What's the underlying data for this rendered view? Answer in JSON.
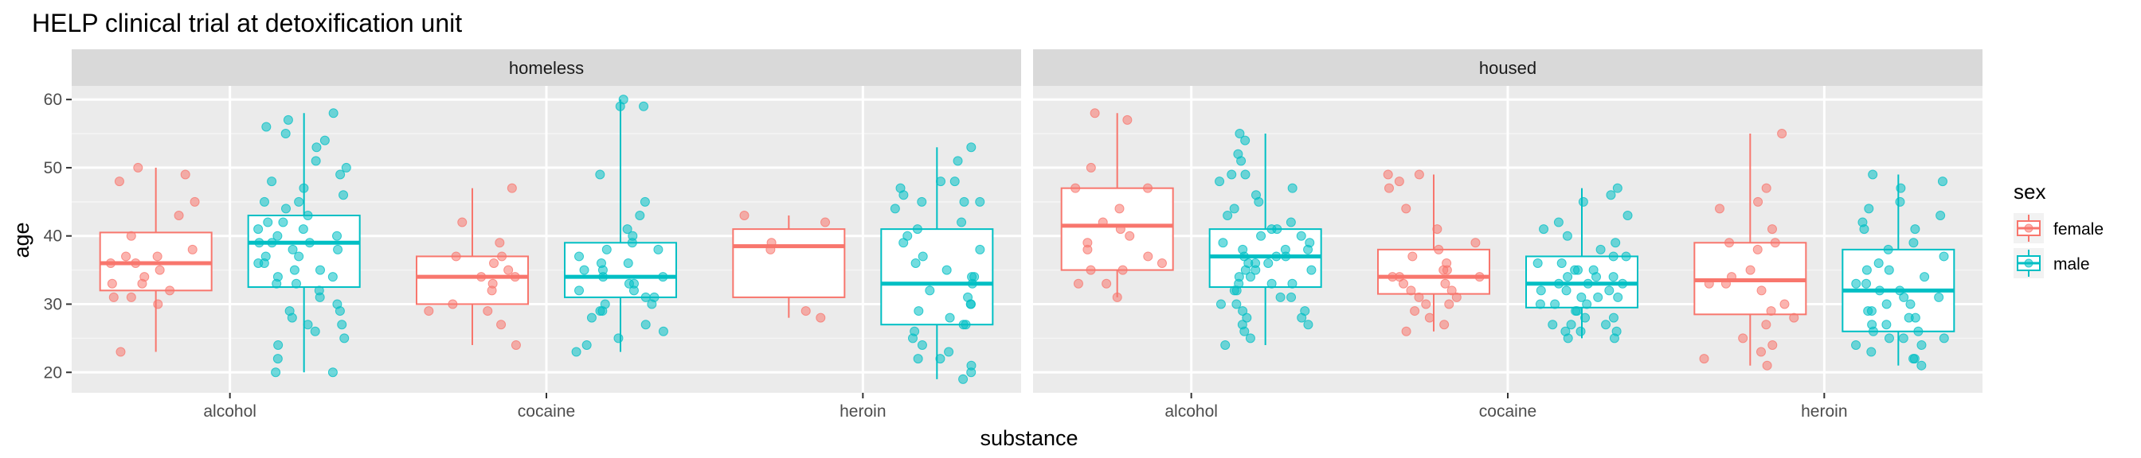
{
  "chart_data": {
    "type": "boxplot",
    "title": "HELP clinical trial at detoxification unit",
    "xlabel": "substance",
    "ylabel": "age",
    "ylim": [
      17,
      62
    ],
    "yticks": [
      20,
      30,
      40,
      50,
      60
    ],
    "categories": [
      "alcohol",
      "cocaine",
      "heroin"
    ],
    "facets": [
      "homeless",
      "housed"
    ],
    "legend": {
      "title": "sex",
      "position": "right",
      "entries": [
        {
          "name": "female",
          "color": "#F8766D"
        },
        {
          "name": "male",
          "color": "#00BFC4"
        }
      ]
    },
    "grid": true,
    "panels": [
      {
        "facet": "homeless",
        "groups": [
          {
            "category": "alcohol",
            "sex": "female",
            "min": 23,
            "q1": 32,
            "median": 36,
            "q3": 40.5,
            "max": 50,
            "points": [
              49,
              50,
              48,
              45,
              43,
              40,
              38,
              37,
              37,
              36,
              36,
              35,
              34,
              33,
              33,
              32,
              31,
              31,
              30,
              23
            ]
          },
          {
            "category": "alcohol",
            "sex": "male",
            "min": 20,
            "q1": 32.5,
            "median": 39,
            "q3": 43,
            "max": 58,
            "points": [
              58,
              57,
              56,
              55,
              54,
              53,
              51,
              50,
              49,
              48,
              47,
              46,
              45,
              45,
              44,
              43,
              42,
              42,
              41,
              41,
              40,
              40,
              39,
              39,
              39,
              38,
              38,
              37,
              37,
              36,
              36,
              35,
              35,
              34,
              34,
              33,
              33,
              32,
              31,
              30,
              29,
              29,
              28,
              27,
              27,
              26,
              25,
              24,
              22,
              20,
              20
            ]
          },
          {
            "category": "cocaine",
            "sex": "female",
            "min": 24,
            "q1": 30,
            "median": 34,
            "q3": 37,
            "max": 47,
            "points": [
              47,
              42,
              39,
              37,
              37,
              36,
              35,
              34,
              34,
              33,
              32,
              30,
              29,
              29,
              27,
              24
            ]
          },
          {
            "category": "cocaine",
            "sex": "male",
            "min": 23,
            "q1": 31,
            "median": 34,
            "q3": 39,
            "max": 60,
            "points": [
              60,
              59,
              59,
              49,
              45,
              43,
              41,
              40,
              39,
              38,
              38,
              37,
              36,
              36,
              35,
              35,
              34,
              34,
              33,
              33,
              32,
              32,
              31,
              31,
              30,
              30,
              29,
              29,
              28,
              27,
              26,
              25,
              24,
              23
            ]
          },
          {
            "category": "heroin",
            "sex": "female",
            "min": 28,
            "q1": 31,
            "median": 38.5,
            "q3": 41,
            "max": 43,
            "points": [
              43,
              42,
              39,
              38,
              29,
              28
            ]
          },
          {
            "category": "heroin",
            "sex": "male",
            "min": 19,
            "q1": 27,
            "median": 33,
            "q3": 41,
            "max": 53,
            "points": [
              53,
              51,
              48,
              48,
              47,
              46,
              45,
              45,
              45,
              44,
              42,
              41,
              40,
              39,
              38,
              37,
              36,
              35,
              34,
              34,
              33,
              32,
              31,
              30,
              30,
              29,
              28,
              27,
              27,
              26,
              25,
              24,
              23,
              22,
              22,
              21,
              20,
              19
            ]
          }
        ]
      },
      {
        "facet": "housed",
        "groups": [
          {
            "category": "alcohol",
            "sex": "female",
            "min": 31,
            "q1": 35,
            "median": 41.5,
            "q3": 47,
            "max": 58,
            "points": [
              58,
              57,
              50,
              47,
              47,
              44,
              42,
              41,
              40,
              39,
              38,
              37,
              36,
              35,
              35,
              33,
              33,
              31
            ]
          },
          {
            "category": "alcohol",
            "sex": "male",
            "min": 24,
            "q1": 32.5,
            "median": 37,
            "q3": 41,
            "max": 55,
            "points": [
              55,
              54,
              52,
              51,
              49,
              49,
              48,
              47,
              46,
              45,
              44,
              43,
              42,
              41,
              41,
              40,
              40,
              39,
              39,
              38,
              38,
              38,
              37,
              37,
              37,
              36,
              36,
              36,
              35,
              35,
              35,
              34,
              34,
              33,
              33,
              33,
              32,
              32,
              31,
              31,
              30,
              30,
              29,
              29,
              28,
              28,
              27,
              27,
              26,
              25,
              24
            ]
          },
          {
            "category": "cocaine",
            "sex": "female",
            "min": 26,
            "q1": 31.5,
            "median": 34,
            "q3": 38,
            "max": 49,
            "points": [
              49,
              49,
              48,
              47,
              44,
              41,
              39,
              38,
              37,
              36,
              35,
              35,
              34,
              34,
              34,
              33,
              33,
              32,
              32,
              31,
              31,
              30,
              30,
              29,
              28,
              27,
              26
            ]
          },
          {
            "category": "cocaine",
            "sex": "male",
            "min": 25,
            "q1": 29.5,
            "median": 33,
            "q3": 37,
            "max": 47,
            "points": [
              47,
              46,
              45,
              43,
              42,
              41,
              40,
              39,
              38,
              37,
              37,
              36,
              36,
              35,
              35,
              35,
              34,
              34,
              34,
              33,
              33,
              33,
              32,
              32,
              32,
              31,
              31,
              31,
              30,
              30,
              30,
              29,
              29,
              28,
              28,
              27,
              27,
              27,
              26,
              26,
              26,
              25,
              25
            ]
          },
          {
            "category": "heroin",
            "sex": "female",
            "min": 21,
            "q1": 28.5,
            "median": 33.5,
            "q3": 39,
            "max": 55,
            "points": [
              55,
              47,
              45,
              44,
              41,
              39,
              39,
              38,
              35,
              34,
              33,
              33,
              32,
              30,
              29,
              28,
              27,
              25,
              24,
              23,
              22,
              21
            ]
          },
          {
            "category": "heroin",
            "sex": "male",
            "min": 21,
            "q1": 26,
            "median": 32,
            "q3": 38,
            "max": 49,
            "points": [
              49,
              48,
              47,
              45,
              44,
              43,
              42,
              41,
              41,
              39,
              38,
              37,
              36,
              35,
              35,
              34,
              33,
              33,
              32,
              32,
              31,
              31,
              30,
              30,
              29,
              29,
              28,
              28,
              27,
              27,
              26,
              26,
              25,
              25,
              25,
              24,
              24,
              23,
              22,
              22,
              21
            ]
          }
        ]
      }
    ]
  }
}
